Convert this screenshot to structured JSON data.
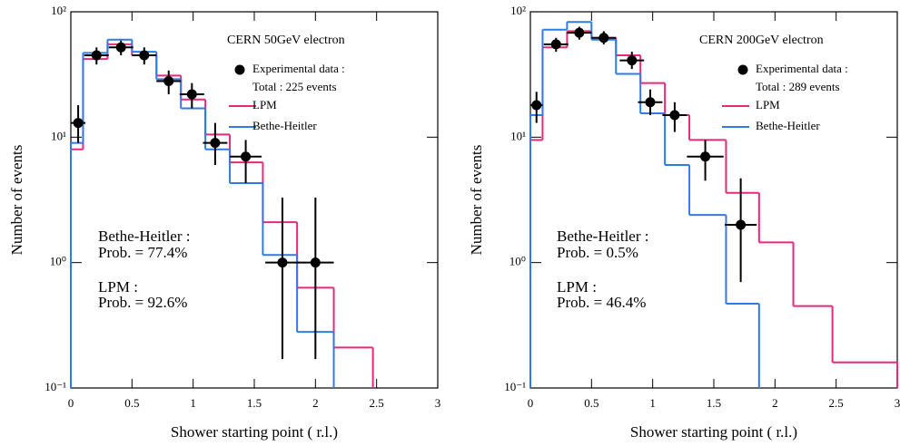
{
  "chart_data": [
    {
      "type": "histogram",
      "title": "CERN 50GeV electron",
      "xlabel": "Shower starting point ( r.l.)",
      "ylabel": "Number of events",
      "xlim": [
        0,
        3
      ],
      "ylim": [
        0.1,
        100
      ],
      "log_y": true,
      "xticks": [
        0,
        0.5,
        1,
        1.5,
        2,
        2.5,
        3
      ],
      "yticks": [
        {
          "value": 0.1,
          "label": "10⁻¹"
        },
        {
          "value": 1,
          "label": "10⁰"
        },
        {
          "value": 10,
          "label": "10¹"
        },
        {
          "value": 100,
          "label": "10²"
        }
      ],
      "bins": [
        0,
        0.1,
        0.3,
        0.5,
        0.7,
        0.9,
        1.1,
        1.3,
        1.57,
        1.85,
        2.15,
        2.47
      ],
      "series": [
        {
          "name": "LPM",
          "color": "#e8287a",
          "values": [
            8,
            42,
            55,
            45,
            31,
            20,
            10.5,
            6.3,
            2.1,
            0.63,
            0.21
          ]
        },
        {
          "name": "Bethe-Heitler",
          "color": "#2f7be6",
          "values": [
            9,
            47,
            60,
            48,
            29,
            17,
            8,
            4.3,
            1.15,
            0.28,
            null
          ]
        }
      ],
      "points": {
        "name": "Experimental data :",
        "note": "Total : 225 events",
        "color": "#000000",
        "x": [
          0.06,
          0.21,
          0.41,
          0.6,
          0.8,
          0.99,
          1.18,
          1.43,
          1.73,
          2.0
        ],
        "y": [
          13,
          45,
          52,
          45,
          28,
          22,
          9,
          7,
          1,
          1
        ],
        "y_low": [
          9,
          38,
          45,
          38,
          22,
          17,
          6,
          4.3,
          0.17,
          0.17
        ],
        "y_high": [
          18,
          52,
          59,
          52,
          34,
          27,
          13,
          9.5,
          3.3,
          3.3
        ],
        "xerr": [
          0.06,
          0.1,
          0.1,
          0.1,
          0.1,
          0.1,
          0.1,
          0.13,
          0.14,
          0.15
        ]
      },
      "annotations": [
        "Bethe-Heitler :",
        "Prob. = 77.4%",
        "LPM :",
        "Prob. = 92.6%"
      ]
    },
    {
      "type": "histogram",
      "title": "CERN 200GeV electron",
      "xlabel": "Shower starting point ( r.l.)",
      "ylabel": "Number of events",
      "xlim": [
        0,
        3
      ],
      "ylim": [
        0.1,
        100
      ],
      "log_y": true,
      "xticks": [
        0,
        0.5,
        1,
        1.5,
        2,
        2.5,
        3
      ],
      "yticks": [
        {
          "value": 0.1,
          "label": "10⁻¹"
        },
        {
          "value": 1,
          "label": "10⁰"
        },
        {
          "value": 10,
          "label": "10¹"
        },
        {
          "value": 100,
          "label": "10²"
        }
      ],
      "bins": [
        0,
        0.1,
        0.3,
        0.5,
        0.7,
        0.9,
        1.1,
        1.3,
        1.6,
        1.87,
        2.15,
        2.47,
        3
      ],
      "series": [
        {
          "name": "LPM",
          "color": "#e8287a",
          "values": [
            9.5,
            52,
            70,
            62,
            45,
            27,
            15,
            9.5,
            3.6,
            1.45,
            0.45,
            0.16
          ]
        },
        {
          "name": "Bethe-Heitler",
          "color": "#2f7be6",
          "values": [
            15,
            72,
            83,
            60,
            32,
            15.5,
            6,
            2.4,
            0.47,
            null,
            null,
            null
          ]
        }
      ],
      "points": {
        "name": "Experimental data :",
        "note": "Total : 289 events",
        "color": "#000000",
        "x": [
          0.05,
          0.21,
          0.4,
          0.6,
          0.83,
          0.98,
          1.18,
          1.43,
          1.72
        ],
        "y": [
          18,
          55,
          68,
          62,
          41,
          19,
          15,
          7,
          2
        ],
        "y_low": [
          13,
          48,
          60,
          55,
          35,
          15,
          11,
          4.5,
          0.7
        ],
        "y_high": [
          23,
          62,
          76,
          70,
          48,
          24,
          19,
          9.5,
          4.7
        ],
        "xerr": [
          0.05,
          0.1,
          0.1,
          0.1,
          0.1,
          0.1,
          0.1,
          0.15,
          0.13
        ]
      },
      "annotations": [
        "Bethe-Heitler :",
        "Prob. = 0.5%",
        "LPM :",
        "Prob. = 46.4%"
      ]
    }
  ]
}
